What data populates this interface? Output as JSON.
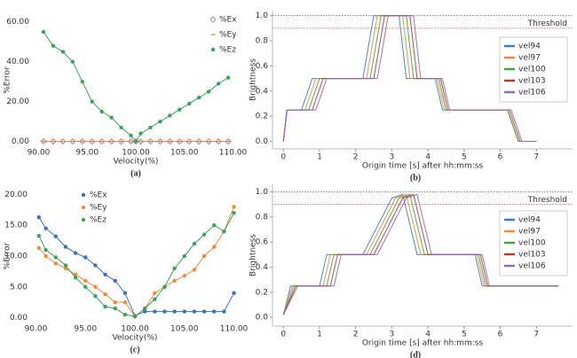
{
  "chart_data": [
    {
      "type": "line",
      "caption": "(a)",
      "xlabel": "Velocity(%)",
      "ylabel": "%Error",
      "legend": "upper right",
      "grid": false,
      "xlim": [
        89.5,
        110.5
      ],
      "ylim": [
        -1.5,
        63
      ],
      "xticks": [
        {
          "value": 90,
          "label": "90.00"
        },
        {
          "value": 95,
          "label": "95.00"
        },
        {
          "value": 100,
          "label": "100.00"
        },
        {
          "value": 105,
          "label": "105.00"
        },
        {
          "value": 110,
          "label": "110.00"
        }
      ],
      "yticks": [
        {
          "value": 0,
          "label": "0.00"
        },
        {
          "value": 20,
          "label": "20.00"
        },
        {
          "value": 40,
          "label": "40.00"
        },
        {
          "value": 60,
          "label": "60.00"
        }
      ],
      "x": [
        90.5,
        91.5,
        92.5,
        93.5,
        94.5,
        95.5,
        96.5,
        97.5,
        98.5,
        99.5,
        100,
        100.5,
        101.5,
        102.5,
        103.5,
        104.5,
        105.5,
        106.5,
        107.5,
        108.5,
        109.5
      ],
      "series": [
        {
          "name": "%Ex",
          "color": "#9a8fb3",
          "marker": "diamond",
          "values": [
            0,
            0,
            0,
            0,
            0,
            0,
            0,
            0,
            0,
            0,
            0,
            0,
            0,
            0,
            0,
            0,
            0,
            0,
            0,
            0,
            0
          ]
        },
        {
          "name": "%Ey",
          "color": "#f08a3c",
          "marker": "dash",
          "values": [
            0,
            0,
            0,
            0,
            0,
            0,
            0,
            0,
            0,
            0,
            0,
            0,
            0,
            0,
            0,
            0,
            0,
            0,
            0,
            0,
            0
          ]
        },
        {
          "name": "%Ez",
          "color": "#3aa35a",
          "marker": "circle",
          "values": [
            55,
            48,
            45,
            40,
            30,
            20,
            15,
            12,
            7,
            3,
            0,
            4,
            7,
            10,
            13,
            16,
            19,
            22,
            25,
            29,
            32
          ]
        }
      ]
    },
    {
      "type": "line",
      "caption": "(b)",
      "xlabel": "Origin time [s] after hh:mm:ss",
      "ylabel": "Brightness",
      "legend": "right",
      "grid": false,
      "xlim": [
        -0.3,
        8.0
      ],
      "ylim": [
        -0.06,
        1.04
      ],
      "xticks": [
        0,
        1,
        2,
        3,
        4,
        5,
        6,
        7
      ],
      "yticks": [
        {
          "value": 0,
          "label": "0.0"
        },
        0.2,
        0.4,
        0.6,
        0.8,
        {
          "value": 1,
          "label": "1.0"
        }
      ],
      "threshold": {
        "label": "Threshold",
        "lines": [
          {
            "value": 1,
            "color": "#888888"
          },
          {
            "value": 0.9,
            "color": "#e07070"
          }
        ]
      },
      "series": [
        {
          "name": "vel94",
          "color": "#3b7fc4",
          "x": [
            0,
            0.1,
            0.5,
            0.8,
            2.2,
            2.5,
            3.2,
            3.4,
            4.2,
            4.4,
            6.2,
            6.5,
            7.0
          ],
          "values": [
            0,
            0.25,
            0.25,
            0.5,
            0.5,
            1,
            1,
            0.5,
            0.5,
            0.25,
            0.25,
            0,
            0
          ]
        },
        {
          "name": "vel97",
          "color": "#f08a3c",
          "x": [
            0,
            0.1,
            0.6,
            0.9,
            2.3,
            2.6,
            3.3,
            3.5,
            4.25,
            4.45,
            6.2,
            6.5,
            7.0
          ],
          "values": [
            0,
            0.25,
            0.25,
            0.5,
            0.5,
            1,
            1,
            0.5,
            0.5,
            0.25,
            0.25,
            0,
            0
          ]
        },
        {
          "name": "vel100",
          "color": "#3fa845",
          "x": [
            0,
            0.1,
            0.7,
            1.0,
            2.4,
            2.7,
            3.4,
            3.6,
            4.3,
            4.5,
            6.2,
            6.5,
            7.0
          ],
          "values": [
            0,
            0.25,
            0.25,
            0.5,
            0.5,
            1,
            1,
            0.5,
            0.5,
            0.25,
            0.25,
            0,
            0
          ]
        },
        {
          "name": "vel103",
          "color": "#c0392b",
          "x": [
            0,
            0.1,
            0.8,
            1.1,
            2.5,
            2.8,
            3.5,
            3.7,
            4.35,
            4.55,
            6.25,
            6.55,
            7.0
          ],
          "values": [
            0,
            0.25,
            0.25,
            0.5,
            0.5,
            1,
            1,
            0.5,
            0.5,
            0.25,
            0.25,
            0,
            0
          ]
        },
        {
          "name": "vel106",
          "color": "#8e6bbf",
          "x": [
            0,
            0.1,
            0.9,
            1.2,
            2.6,
            2.9,
            3.6,
            3.8,
            4.4,
            4.6,
            6.3,
            6.6,
            7.0
          ],
          "values": [
            0,
            0.25,
            0.25,
            0.5,
            0.5,
            1,
            1,
            0.5,
            0.5,
            0.25,
            0.25,
            0,
            0
          ]
        }
      ]
    },
    {
      "type": "line",
      "caption": "(c)",
      "xlabel": "Velocity(%)",
      "ylabel": "%Error",
      "legend": "upper left",
      "grid": false,
      "xlim": [
        89.6,
        110.4
      ],
      "ylim": [
        -0.5,
        20.5
      ],
      "xticks": [
        {
          "value": 90,
          "label": "90.00"
        },
        {
          "value": 95,
          "label": "95.00"
        },
        {
          "value": 100,
          "label": "100.00"
        },
        {
          "value": 105,
          "label": "105.00"
        },
        {
          "value": 110,
          "label": "110.00"
        }
      ],
      "yticks": [
        {
          "value": 0,
          "label": "0.00"
        },
        {
          "value": 5,
          "label": "5.00"
        },
        {
          "value": 10,
          "label": "10.00"
        },
        {
          "value": 15,
          "label": "15.00"
        },
        {
          "value": 20,
          "label": "20.00"
        }
      ],
      "x": [
        90.3,
        91,
        92,
        93,
        94,
        95,
        96,
        97,
        98,
        99,
        100,
        101,
        102,
        103,
        104,
        105,
        106,
        107,
        108,
        109,
        110
      ],
      "series": [
        {
          "name": "%Ex",
          "color": "#3b6fc0",
          "marker": "circle",
          "values": [
            16.3,
            14.5,
            13.2,
            11.5,
            10.5,
            9.8,
            8.5,
            7.0,
            6.0,
            4.0,
            0.3,
            1,
            1,
            1,
            1,
            1,
            1,
            1,
            1,
            1,
            4
          ]
        },
        {
          "name": "%Ey",
          "color": "#f08a3c",
          "marker": "circle",
          "values": [
            11.3,
            10.0,
            8.8,
            8.0,
            7.0,
            6.0,
            5.0,
            3.8,
            2.5,
            2.5,
            0.2,
            1.5,
            4.0,
            5.0,
            6.0,
            6.8,
            7.8,
            10.0,
            11.5,
            14.0,
            18.0
          ]
        },
        {
          "name": "%Ez",
          "color": "#3aa35a",
          "marker": "circle",
          "values": [
            13.3,
            11.0,
            9.8,
            8.5,
            6.5,
            5.0,
            3.5,
            1.8,
            1.5,
            0.5,
            0.2,
            1.5,
            3.0,
            5.0,
            8.0,
            10.0,
            12.0,
            13.5,
            15.0,
            14.0,
            17.0
          ]
        }
      ]
    },
    {
      "type": "line",
      "caption": "(d)",
      "xlabel": "Origin time [s] after hh:mm:ss",
      "ylabel": "Brightness",
      "legend": "right",
      "grid": false,
      "xlim": [
        -0.3,
        8.0
      ],
      "ylim": [
        -0.07,
        1.06
      ],
      "xticks": [
        0,
        1,
        2,
        3,
        4,
        5,
        6,
        7
      ],
      "yticks": [
        {
          "value": 0,
          "label": "0.0"
        },
        0.2,
        0.4,
        0.6,
        0.8,
        {
          "value": 1,
          "label": "1.0"
        }
      ],
      "threshold": {
        "label": "Threshold",
        "lines": [
          {
            "value": 1,
            "color": "#888888"
          },
          {
            "value": 0.9,
            "color": "#e07070"
          }
        ]
      },
      "series": [
        {
          "name": "vel94",
          "color": "#3b7fc4",
          "x": [
            0,
            0.2,
            1.0,
            1.2,
            2.2,
            3.0,
            3.3,
            3.7,
            5.3,
            5.5,
            7.6
          ],
          "values": [
            0.02,
            0.25,
            0.25,
            0.5,
            0.5,
            0.95,
            0.98,
            0.5,
            0.5,
            0.25,
            0.25
          ]
        },
        {
          "name": "vel97",
          "color": "#f08a3c",
          "x": [
            0,
            0.25,
            1.1,
            1.3,
            2.3,
            3.1,
            3.4,
            3.8,
            5.35,
            5.55,
            7.6
          ],
          "values": [
            0.02,
            0.25,
            0.25,
            0.5,
            0.5,
            0.95,
            0.98,
            0.5,
            0.5,
            0.25,
            0.25
          ]
        },
        {
          "name": "vel100",
          "color": "#3fa845",
          "x": [
            0,
            0.3,
            1.2,
            1.4,
            2.4,
            3.2,
            3.5,
            3.9,
            5.4,
            5.6,
            7.6
          ],
          "values": [
            0.02,
            0.25,
            0.25,
            0.5,
            0.5,
            0.95,
            0.98,
            0.5,
            0.5,
            0.25,
            0.25
          ]
        },
        {
          "name": "vel103",
          "color": "#c0392b",
          "x": [
            0,
            0.35,
            1.3,
            1.5,
            2.5,
            3.3,
            3.6,
            4.0,
            5.45,
            5.65,
            7.6
          ],
          "values": [
            0.02,
            0.25,
            0.25,
            0.5,
            0.5,
            0.95,
            0.98,
            0.5,
            0.5,
            0.25,
            0.25
          ]
        },
        {
          "name": "vel106",
          "color": "#8e6bbf",
          "x": [
            0,
            0.4,
            1.4,
            1.6,
            2.6,
            3.4,
            3.7,
            4.1,
            5.5,
            5.7,
            7.6
          ],
          "values": [
            0.02,
            0.25,
            0.25,
            0.5,
            0.5,
            0.95,
            0.98,
            0.5,
            0.5,
            0.25,
            0.25
          ]
        }
      ]
    }
  ]
}
